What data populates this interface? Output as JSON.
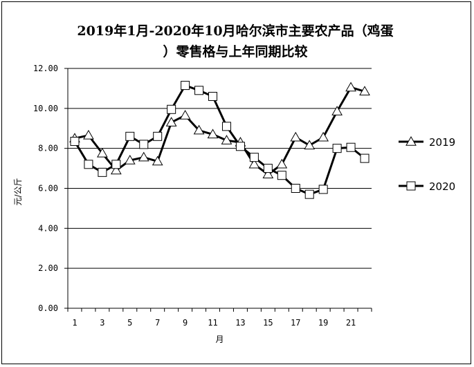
{
  "chart_data": {
    "type": "line",
    "title": "2019年1月-2020年10月哈尔滨市主要农产品（鸡蛋）零售格与上年同期比较",
    "xlabel": "月",
    "ylabel": "元/公斤",
    "ylim": [
      0,
      12
    ],
    "yticks": [
      "0.00",
      "2.00",
      "4.00",
      "6.00",
      "8.00",
      "10.00",
      "12.00"
    ],
    "xticks": [
      "1",
      "3",
      "5",
      "7",
      "9",
      "11",
      "13",
      "15",
      "17",
      "19",
      "21"
    ],
    "x": [
      1,
      2,
      3,
      4,
      5,
      6,
      7,
      8,
      9,
      10,
      11,
      12,
      13,
      14,
      15,
      16,
      17,
      18,
      19,
      20,
      21,
      22
    ],
    "grid": true,
    "legend_position": "right",
    "series": [
      {
        "name": "2019",
        "marker": "triangle",
        "color": "#000000",
        "values": [
          8.5,
          8.65,
          7.75,
          6.9,
          7.4,
          7.55,
          7.35,
          9.3,
          9.65,
          8.9,
          8.7,
          8.4,
          8.3,
          7.2,
          6.7,
          7.2,
          8.55,
          8.15,
          8.55,
          9.85,
          11.05,
          10.85
        ]
      },
      {
        "name": "2020",
        "marker": "square",
        "color": "#000000",
        "values": [
          8.35,
          7.2,
          6.8,
          7.2,
          8.6,
          8.2,
          8.6,
          9.95,
          11.15,
          10.9,
          10.6,
          9.1,
          8.1,
          7.55,
          7.0,
          6.65,
          6.0,
          5.7,
          5.95,
          8.0,
          8.05,
          7.5
        ]
      }
    ]
  }
}
